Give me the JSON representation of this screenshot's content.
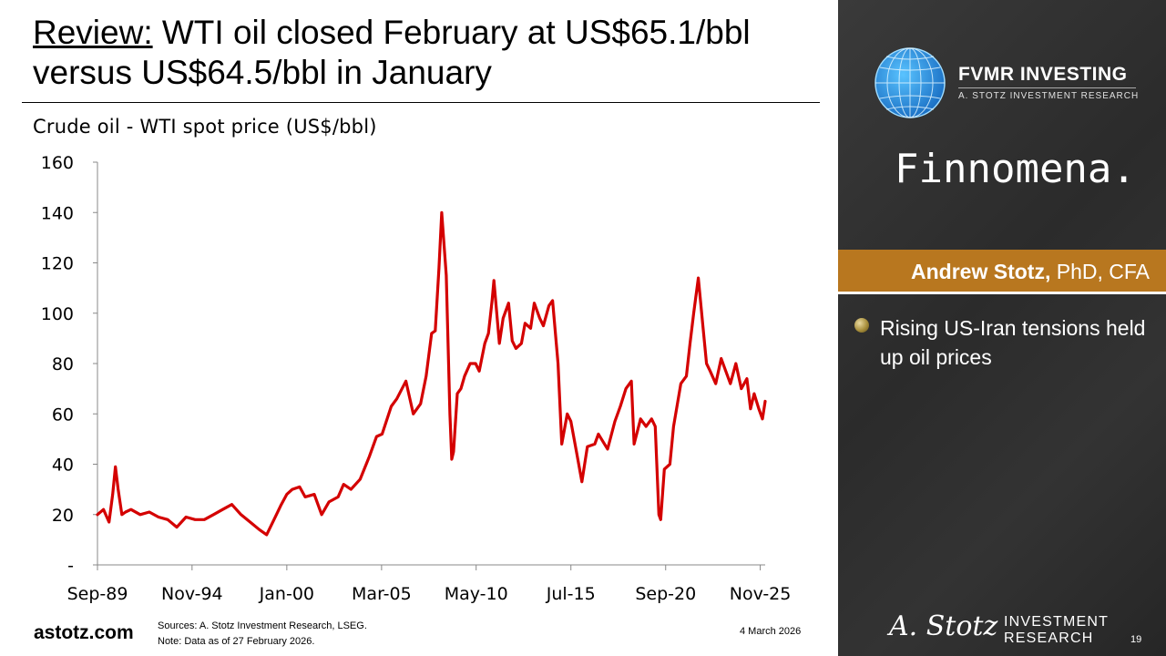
{
  "header": {
    "title_highlight": "Review:",
    "title_rest": " WTI oil closed February at US$65.1/bbl versus US$64.5/bbl in January"
  },
  "chart_data": {
    "type": "line",
    "title": "Crude oil - WTI spot price (US$/bbl)",
    "xlabel": "",
    "ylabel": "",
    "ylim": [
      0,
      160
    ],
    "yticks": [
      0,
      20,
      40,
      60,
      80,
      100,
      120,
      140,
      160
    ],
    "ytick_labels": [
      "-",
      "20",
      "40",
      "60",
      "80",
      "100",
      "120",
      "140",
      "160"
    ],
    "xtick_labels": [
      "Sep-89",
      "Nov-94",
      "Jan-00",
      "Mar-05",
      "May-10",
      "Jul-15",
      "Sep-20",
      "Nov-25"
    ],
    "xtick_positions": [
      1989.67,
      1994.83,
      2000.0,
      2005.17,
      2010.33,
      2015.5,
      2020.67,
      2025.83
    ],
    "xlim": [
      1989.67,
      2026.1
    ],
    "grid": false,
    "series": [
      {
        "name": "",
        "color": "#d40000",
        "x": [
          1989.67,
          1990.0,
          1990.3,
          1990.5,
          1990.65,
          1990.8,
          1991.0,
          1991.2,
          1991.5,
          1992.0,
          1992.5,
          1993.0,
          1993.5,
          1994.0,
          1994.5,
          1995.0,
          1995.5,
          1996.0,
          1996.5,
          1997.0,
          1997.5,
          1998.0,
          1998.5,
          1998.9,
          1999.3,
          1999.7,
          2000.0,
          2000.3,
          2000.7,
          2001.0,
          2001.5,
          2001.9,
          2002.3,
          2002.8,
          2003.1,
          2003.5,
          2004.0,
          2004.5,
          2004.9,
          2005.2,
          2005.7,
          2006.0,
          2006.5,
          2006.9,
          2007.3,
          2007.6,
          2007.9,
          2008.1,
          2008.3,
          2008.45,
          2008.7,
          2008.9,
          2009.0,
          2009.1,
          2009.3,
          2009.5,
          2009.7,
          2010.0,
          2010.3,
          2010.5,
          2010.8,
          2011.0,
          2011.2,
          2011.3,
          2011.6,
          2011.8,
          2012.1,
          2012.3,
          2012.5,
          2012.8,
          2013.0,
          2013.3,
          2013.5,
          2013.8,
          2014.0,
          2014.3,
          2014.5,
          2014.8,
          2015.0,
          2015.3,
          2015.5,
          2015.8,
          2016.1,
          2016.4,
          2016.8,
          2017.0,
          2017.5,
          2017.9,
          2018.2,
          2018.5,
          2018.8,
          2018.95,
          2019.3,
          2019.6,
          2019.9,
          2020.1,
          2020.3,
          2020.4,
          2020.6,
          2020.9,
          2021.1,
          2021.5,
          2021.8,
          2022.0,
          2022.2,
          2022.45,
          2022.7,
          2022.9,
          2023.1,
          2023.4,
          2023.7,
          2023.9,
          2024.2,
          2024.5,
          2024.8,
          2025.1,
          2025.3,
          2025.5,
          2025.75,
          2025.95,
          2026.1
        ],
        "y": [
          20,
          22,
          17,
          28,
          39,
          30,
          20,
          21,
          22,
          20,
          21,
          19,
          18,
          15,
          19,
          18,
          18,
          20,
          22,
          24,
          20,
          17,
          14,
          12,
          18,
          24,
          28,
          30,
          31,
          27,
          28,
          20,
          25,
          27,
          32,
          30,
          34,
          43,
          51,
          52,
          63,
          66,
          73,
          60,
          64,
          75,
          92,
          93,
          118,
          140,
          115,
          60,
          42,
          45,
          68,
          70,
          75,
          80,
          80,
          77,
          88,
          92,
          105,
          113,
          88,
          98,
          104,
          89,
          86,
          88,
          96,
          94,
          104,
          98,
          95,
          103,
          105,
          80,
          48,
          60,
          57,
          45,
          33,
          47,
          48,
          52,
          46,
          57,
          63,
          70,
          73,
          48,
          58,
          55,
          58,
          55,
          20,
          18,
          38,
          40,
          55,
          72,
          75,
          88,
          100,
          114,
          95,
          80,
          77,
          72,
          82,
          78,
          72,
          80,
          70,
          74,
          62,
          68,
          62,
          58,
          65
        ]
      }
    ]
  },
  "footer": {
    "site": "astotz.com",
    "source_line": "Sources: A. Stotz Investment Research, LSEG.",
    "note_line": "Note: Data as of 27 February 2026.",
    "date": "4 March 2026"
  },
  "sidebar": {
    "brand_name": "FVMR INVESTING",
    "brand_sub": "A. STOTZ INVESTMENT RESEARCH",
    "partner": "Finnomena.",
    "author_name": "Andrew Stotz,",
    "author_credentials": " PhD, CFA",
    "bullet": "Rising US-Iran tensions held up oil prices",
    "signature": "A. Stotz",
    "research_line1": "INVESTMENT",
    "research_line2": "RESEARCH",
    "page_number": "19"
  },
  "colors": {
    "series": "#d40000",
    "author_bar": "#b8771f",
    "panel": "#2e2e2e"
  }
}
